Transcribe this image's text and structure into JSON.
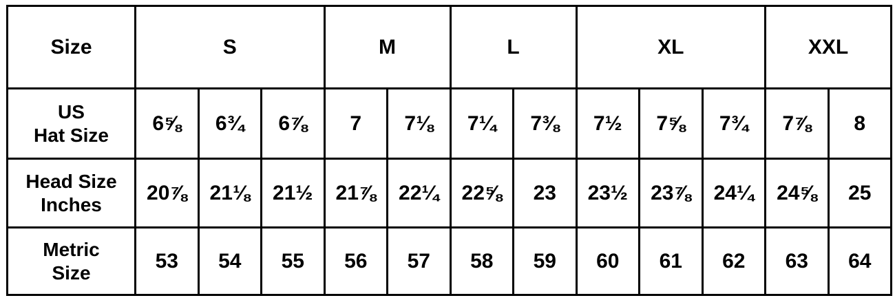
{
  "table": {
    "header": {
      "label": "Size",
      "groups": [
        {
          "label": "S",
          "span": 3
        },
        {
          "label": "M",
          "span": 2
        },
        {
          "label": "L",
          "span": 2
        },
        {
          "label": "XL",
          "span": 3
        },
        {
          "label": "XXL",
          "span": 2
        }
      ]
    },
    "rows": [
      {
        "label_line1": "US",
        "label_line2": "Hat Size",
        "values": [
          "6⅝",
          "6¾",
          "6⅞",
          "7",
          "7⅛",
          "7¼",
          "7⅜",
          "7½",
          "7⅝",
          "7¾",
          "7⅞",
          "8"
        ]
      },
      {
        "label_line1": "Head Size",
        "label_line2": "Inches",
        "values": [
          "20⅞",
          "21⅛",
          "21½",
          "21⅞",
          "22¼",
          "22⅝",
          "23",
          "23½",
          "23⅞",
          "24¼",
          "24⅝",
          "25"
        ]
      },
      {
        "label_line1": "Metric",
        "label_line2": "Size",
        "values": [
          "53",
          "54",
          "55",
          "56",
          "57",
          "58",
          "59",
          "60",
          "61",
          "62",
          "63",
          "64"
        ]
      }
    ]
  }
}
